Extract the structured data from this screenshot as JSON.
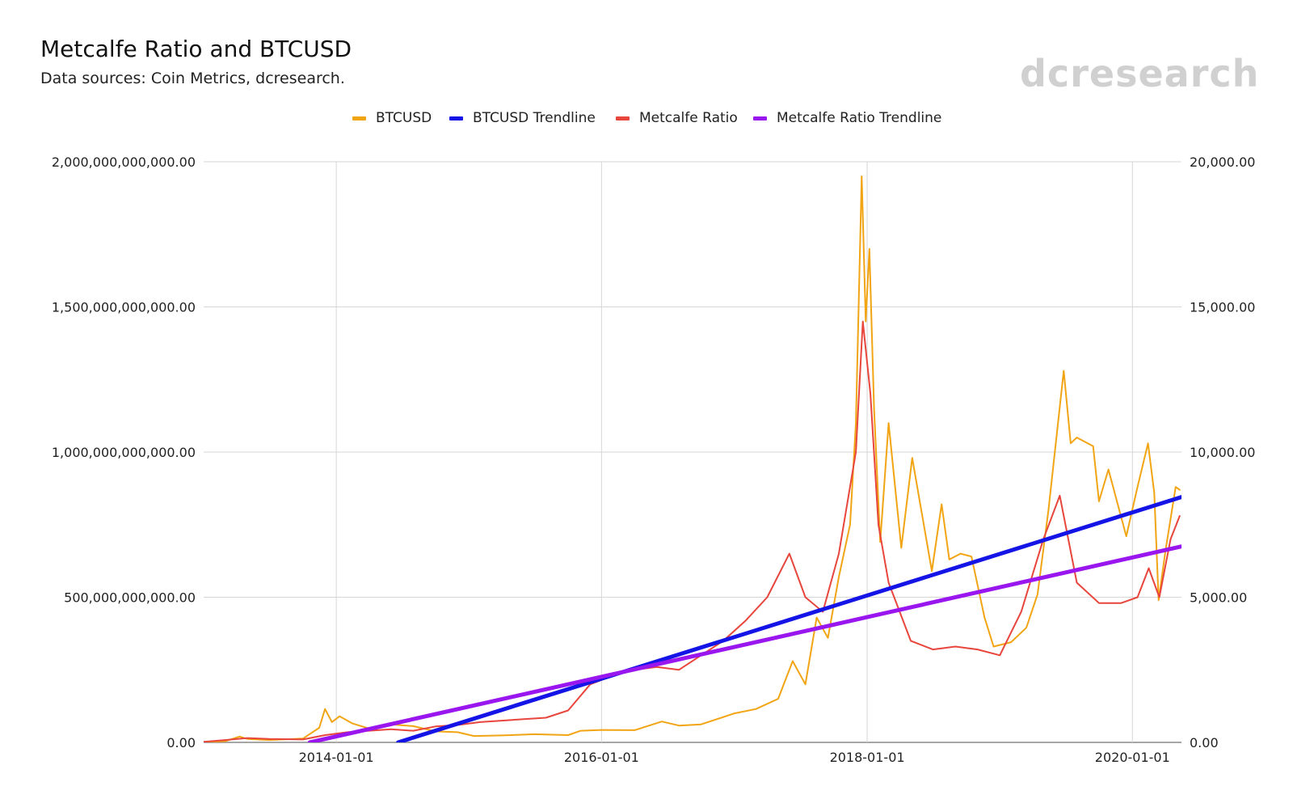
{
  "header": {
    "title": "Metcalfe Ratio and BTCUSD",
    "subtitle": "Data sources: Coin Metrics, dcresearch."
  },
  "brand": {
    "wordmark": "dcresearch",
    "color": "#d0d0d0"
  },
  "chart_data": {
    "type": "line",
    "title": "Metcalfe Ratio and BTCUSD",
    "subtitle": "Data sources: Coin Metrics, dcresearch.",
    "legend_position": "top",
    "grid": true,
    "x_range": [
      "2013-01-01",
      "2020-05-15"
    ],
    "x_ticks": [
      "2014-01-01",
      "2016-01-01",
      "2018-01-01",
      "2020-01-01"
    ],
    "y_left": {
      "range": [
        0,
        2000000000000
      ],
      "ticks": [
        0,
        500000000000,
        1000000000000,
        1500000000000,
        2000000000000
      ],
      "tick_labels": [
        "0.00",
        "500,000,000,000.00",
        "1,000,000,000,000.00",
        "1,500,000,000,000.00",
        "2,000,000,000,000.00"
      ]
    },
    "y_right": {
      "range": [
        0,
        20000
      ],
      "ticks": [
        0,
        5000,
        10000,
        15000,
        20000
      ],
      "tick_labels": [
        "0.00",
        "5,000.00",
        "10,000.00",
        "15,000.00",
        "20,000.00"
      ]
    },
    "series": [
      {
        "name": "BTCUSD",
        "axis": "right",
        "color": "#f2a514",
        "points": [
          [
            "2013-01-01",
            13
          ],
          [
            "2013-03-01",
            40
          ],
          [
            "2013-04-10",
            200
          ],
          [
            "2013-05-01",
            120
          ],
          [
            "2013-07-01",
            80
          ],
          [
            "2013-10-01",
            130
          ],
          [
            "2013-11-15",
            500
          ],
          [
            "2013-12-01",
            1150
          ],
          [
            "2013-12-20",
            700
          ],
          [
            "2014-01-10",
            900
          ],
          [
            "2014-02-15",
            650
          ],
          [
            "2014-04-01",
            480
          ],
          [
            "2014-06-01",
            620
          ],
          [
            "2014-08-01",
            560
          ],
          [
            "2014-10-01",
            380
          ],
          [
            "2014-12-01",
            350
          ],
          [
            "2015-01-15",
            220
          ],
          [
            "2015-04-01",
            240
          ],
          [
            "2015-07-01",
            280
          ],
          [
            "2015-10-01",
            250
          ],
          [
            "2015-11-05",
            400
          ],
          [
            "2016-01-01",
            430
          ],
          [
            "2016-04-01",
            420
          ],
          [
            "2016-06-15",
            720
          ],
          [
            "2016-08-01",
            580
          ],
          [
            "2016-10-01",
            620
          ],
          [
            "2017-01-01",
            1000
          ],
          [
            "2017-03-01",
            1150
          ],
          [
            "2017-05-01",
            1500
          ],
          [
            "2017-06-10",
            2800
          ],
          [
            "2017-07-15",
            2000
          ],
          [
            "2017-08-15",
            4300
          ],
          [
            "2017-09-15",
            3600
          ],
          [
            "2017-10-15",
            5700
          ],
          [
            "2017-11-15",
            7500
          ],
          [
            "2017-12-01",
            11000
          ],
          [
            "2017-12-17",
            19500
          ],
          [
            "2017-12-28",
            14500
          ],
          [
            "2018-01-07",
            17000
          ],
          [
            "2018-01-20",
            11500
          ],
          [
            "2018-02-06",
            6900
          ],
          [
            "2018-03-01",
            11000
          ],
          [
            "2018-04-05",
            6700
          ],
          [
            "2018-05-05",
            9800
          ],
          [
            "2018-06-28",
            5900
          ],
          [
            "2018-07-25",
            8200
          ],
          [
            "2018-08-15",
            6300
          ],
          [
            "2018-09-15",
            6500
          ],
          [
            "2018-10-15",
            6400
          ],
          [
            "2018-11-20",
            4300
          ],
          [
            "2018-12-15",
            3300
          ],
          [
            "2019-02-01",
            3450
          ],
          [
            "2019-03-15",
            3950
          ],
          [
            "2019-04-15",
            5100
          ],
          [
            "2019-05-15",
            8000
          ],
          [
            "2019-06-26",
            12800
          ],
          [
            "2019-07-15",
            10300
          ],
          [
            "2019-08-01",
            10500
          ],
          [
            "2019-09-15",
            10200
          ],
          [
            "2019-10-01",
            8300
          ],
          [
            "2019-10-27",
            9400
          ],
          [
            "2019-12-15",
            7100
          ],
          [
            "2020-01-15",
            8800
          ],
          [
            "2020-02-13",
            10300
          ],
          [
            "2020-03-01",
            8600
          ],
          [
            "2020-03-13",
            4900
          ],
          [
            "2020-04-01",
            6600
          ],
          [
            "2020-04-29",
            8800
          ],
          [
            "2020-05-10",
            8700
          ]
        ]
      },
      {
        "name": "BTCUSD Trendline",
        "axis": "right",
        "color": "#1414e6",
        "points": [
          [
            "2014-06-20",
            0
          ],
          [
            "2020-05-15",
            8450
          ]
        ]
      },
      {
        "name": "Metcalfe Ratio",
        "axis": "left",
        "color": "#e8453c",
        "points": [
          [
            "2013-01-01",
            2000000000
          ],
          [
            "2013-03-01",
            8000000000
          ],
          [
            "2013-05-01",
            15000000000
          ],
          [
            "2013-07-01",
            12000000000
          ],
          [
            "2013-10-01",
            10000000000
          ],
          [
            "2013-12-01",
            25000000000
          ],
          [
            "2014-02-01",
            35000000000
          ],
          [
            "2014-04-01",
            40000000000
          ],
          [
            "2014-06-01",
            45000000000
          ],
          [
            "2014-08-01",
            40000000000
          ],
          [
            "2014-10-01",
            55000000000
          ],
          [
            "2014-12-01",
            60000000000
          ],
          [
            "2015-02-01",
            70000000000
          ],
          [
            "2015-04-01",
            75000000000
          ],
          [
            "2015-06-01",
            80000000000
          ],
          [
            "2015-08-01",
            85000000000
          ],
          [
            "2015-10-01",
            110000000000
          ],
          [
            "2015-12-01",
            200000000000
          ],
          [
            "2016-02-01",
            230000000000
          ],
          [
            "2016-04-01",
            250000000000
          ],
          [
            "2016-06-01",
            260000000000
          ],
          [
            "2016-08-01",
            250000000000
          ],
          [
            "2016-10-01",
            300000000000
          ],
          [
            "2016-12-01",
            350000000000
          ],
          [
            "2017-02-01",
            420000000000
          ],
          [
            "2017-04-01",
            500000000000
          ],
          [
            "2017-06-01",
            650000000000
          ],
          [
            "2017-07-15",
            500000000000
          ],
          [
            "2017-09-01",
            450000000000
          ],
          [
            "2017-10-15",
            650000000000
          ],
          [
            "2017-12-01",
            1000000000000
          ],
          [
            "2017-12-20",
            1450000000000
          ],
          [
            "2018-01-10",
            1200000000000
          ],
          [
            "2018-02-01",
            750000000000
          ],
          [
            "2018-03-01",
            550000000000
          ],
          [
            "2018-05-01",
            350000000000
          ],
          [
            "2018-07-01",
            320000000000
          ],
          [
            "2018-09-01",
            330000000000
          ],
          [
            "2018-11-01",
            320000000000
          ],
          [
            "2019-01-01",
            300000000000
          ],
          [
            "2019-03-01",
            450000000000
          ],
          [
            "2019-05-01",
            700000000000
          ],
          [
            "2019-06-15",
            850000000000
          ],
          [
            "2019-08-01",
            550000000000
          ],
          [
            "2019-10-01",
            480000000000
          ],
          [
            "2019-12-01",
            480000000000
          ],
          [
            "2020-01-15",
            500000000000
          ],
          [
            "2020-02-15",
            600000000000
          ],
          [
            "2020-03-15",
            500000000000
          ],
          [
            "2020-04-15",
            700000000000
          ],
          [
            "2020-05-10",
            780000000000
          ]
        ]
      },
      {
        "name": "Metcalfe Ratio Trendline",
        "axis": "left",
        "color": "#9a16ee",
        "points": [
          [
            "2013-10-20",
            0
          ],
          [
            "2020-05-15",
            675000000000
          ]
        ]
      }
    ]
  }
}
